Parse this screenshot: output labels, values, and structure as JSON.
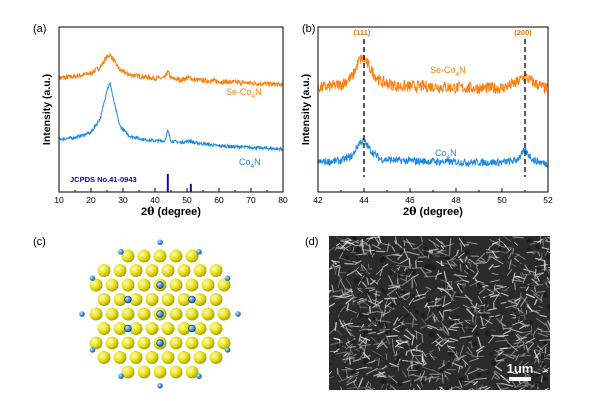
{
  "panels": {
    "a": {
      "label": "(a)",
      "ylabel": "Intensity (a.u.)",
      "xlabel_prefix": "2",
      "xlabel_theta": "θ",
      "xlabel_suffix": " (degree)",
      "series_top_label": {
        "base": "Se-Co",
        "sub": "4",
        "tail": "N"
      },
      "series_bottom_label": {
        "base": "Co",
        "sub": "4",
        "tail": "N"
      },
      "reference_label": "JCPDS No.41-0943"
    },
    "b": {
      "label": "(b)",
      "ylabel": "Intensity (a.u.)",
      "xlabel_prefix": "2",
      "xlabel_theta": "θ",
      "xlabel_suffix": " (degree)",
      "series_top_label": {
        "base": "Se-Co",
        "sub": "4",
        "tail": "N"
      },
      "series_bottom_label": {
        "base": "Co",
        "sub": "4",
        "tail": "N"
      },
      "peak_labels": [
        "(111)",
        "(200)"
      ]
    },
    "c": {
      "label": "(c)"
    },
    "d": {
      "label": "(d)",
      "scalebar": "1um"
    }
  },
  "colors": {
    "se_co4n": "#ff7f0e",
    "co4n": "#1e88e5",
    "reference": "#2200aa",
    "peak_label": "#e07b00",
    "atom_large": "#e6e01a",
    "atom_small": "#3a8fd8"
  },
  "chart_data": [
    {
      "type": "line",
      "panel": "a",
      "xlabel": "2θ (degree)",
      "ylabel": "Intensity (a.u.)",
      "xlim": [
        10,
        80
      ],
      "xticks": [
        10,
        20,
        30,
        40,
        50,
        60,
        70,
        80
      ],
      "y_ticks_shown": false,
      "series": [
        {
          "name": "Se-Co4N",
          "color": "#ff7f0e",
          "x": [
            10,
            15,
            20,
            23,
            25,
            26,
            27,
            29,
            32,
            36,
            40,
            43,
            44,
            45,
            48,
            51,
            52,
            56,
            60,
            65,
            70,
            75,
            80
          ],
          "y": [
            0.69,
            0.7,
            0.72,
            0.76,
            0.82,
            0.83,
            0.8,
            0.74,
            0.71,
            0.7,
            0.69,
            0.69,
            0.73,
            0.69,
            0.68,
            0.695,
            0.68,
            0.675,
            0.67,
            0.665,
            0.66,
            0.655,
            0.65
          ]
        },
        {
          "name": "Co4N",
          "color": "#1e88e5",
          "x": [
            10,
            15,
            20,
            23,
            25,
            26,
            27,
            29,
            32,
            36,
            40,
            43,
            44,
            45,
            48,
            51,
            52,
            56,
            60,
            65,
            70,
            75,
            80
          ],
          "y": [
            0.32,
            0.33,
            0.36,
            0.45,
            0.62,
            0.66,
            0.56,
            0.4,
            0.34,
            0.32,
            0.31,
            0.31,
            0.37,
            0.31,
            0.3,
            0.31,
            0.3,
            0.29,
            0.28,
            0.275,
            0.27,
            0.265,
            0.26
          ]
        }
      ],
      "reference": {
        "name": "JCPDS No.41-0943",
        "lines": [
          {
            "x": 44.0,
            "h": 1.0
          },
          {
            "x": 51.2,
            "h": 0.45
          }
        ]
      }
    },
    {
      "type": "line",
      "panel": "b",
      "xlabel": "2θ (degree)",
      "ylabel": "Intensity (a.u.)",
      "xlim": [
        42,
        52
      ],
      "xticks": [
        42,
        44,
        46,
        48,
        50,
        52
      ],
      "y_ticks_shown": false,
      "peaks": [
        {
          "label": "(111)",
          "x": 44.0
        },
        {
          "label": "(200)",
          "x": 51.0
        }
      ],
      "series": [
        {
          "name": "Se-Co4N",
          "color": "#ff7f0e",
          "x": [
            42,
            43,
            43.5,
            43.8,
            44,
            44.3,
            44.7,
            45.5,
            47,
            48.5,
            50,
            50.6,
            51,
            51.4,
            52
          ],
          "y": [
            0.63,
            0.65,
            0.7,
            0.8,
            0.81,
            0.74,
            0.67,
            0.64,
            0.64,
            0.63,
            0.63,
            0.66,
            0.7,
            0.66,
            0.62
          ]
        },
        {
          "name": "Co4N",
          "color": "#1e88e5",
          "x": [
            42,
            43,
            43.5,
            43.8,
            44,
            44.3,
            44.7,
            45.5,
            47,
            48.5,
            50,
            50.6,
            51,
            51.4,
            52
          ],
          "y": [
            0.18,
            0.19,
            0.22,
            0.3,
            0.31,
            0.25,
            0.2,
            0.19,
            0.185,
            0.18,
            0.18,
            0.19,
            0.25,
            0.19,
            0.17
          ]
        }
      ]
    }
  ]
}
